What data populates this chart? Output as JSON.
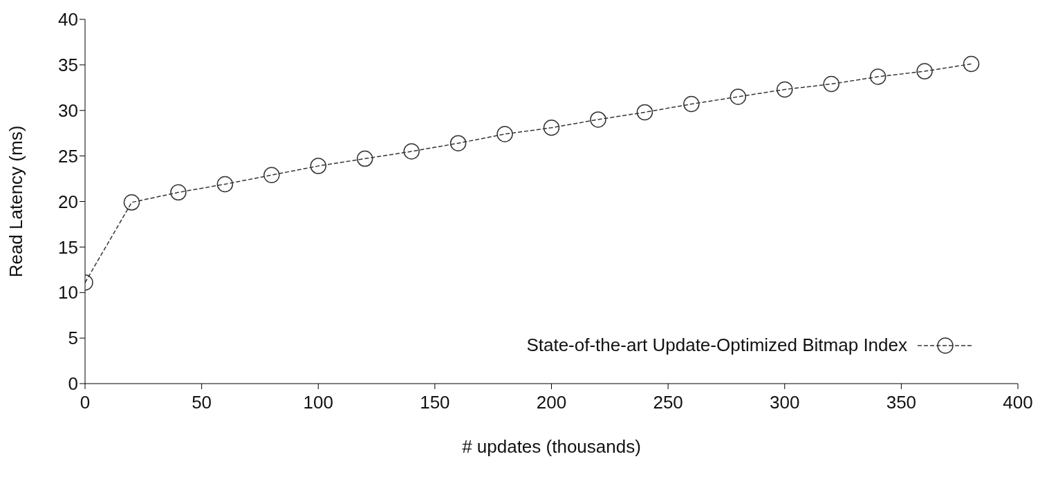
{
  "chart_data": {
    "type": "line",
    "xlabel": "# updates (thousands)",
    "ylabel": "Read Latency (ms)",
    "x": [
      0,
      20,
      40,
      60,
      80,
      100,
      120,
      140,
      160,
      180,
      200,
      220,
      240,
      260,
      280,
      300,
      320,
      340,
      360,
      380
    ],
    "series": [
      {
        "name": "State-of-the-art Update-Optimized Bitmap Index",
        "color": "#333333",
        "values": [
          11.1,
          19.9,
          21.0,
          21.9,
          22.9,
          23.9,
          24.7,
          25.5,
          26.4,
          27.4,
          28.1,
          29.0,
          29.8,
          30.7,
          31.5,
          32.3,
          32.9,
          33.7,
          34.3,
          35.1
        ]
      }
    ],
    "xlim": [
      0,
      400
    ],
    "xticks": [
      0,
      50,
      100,
      150,
      200,
      250,
      300,
      350,
      400
    ],
    "ylim": [
      0,
      40
    ],
    "yticks": [
      0,
      5,
      10,
      15,
      20,
      25,
      30,
      35,
      40
    ],
    "legend": "bottom right",
    "marker": "circle",
    "line_style": "dashed"
  }
}
